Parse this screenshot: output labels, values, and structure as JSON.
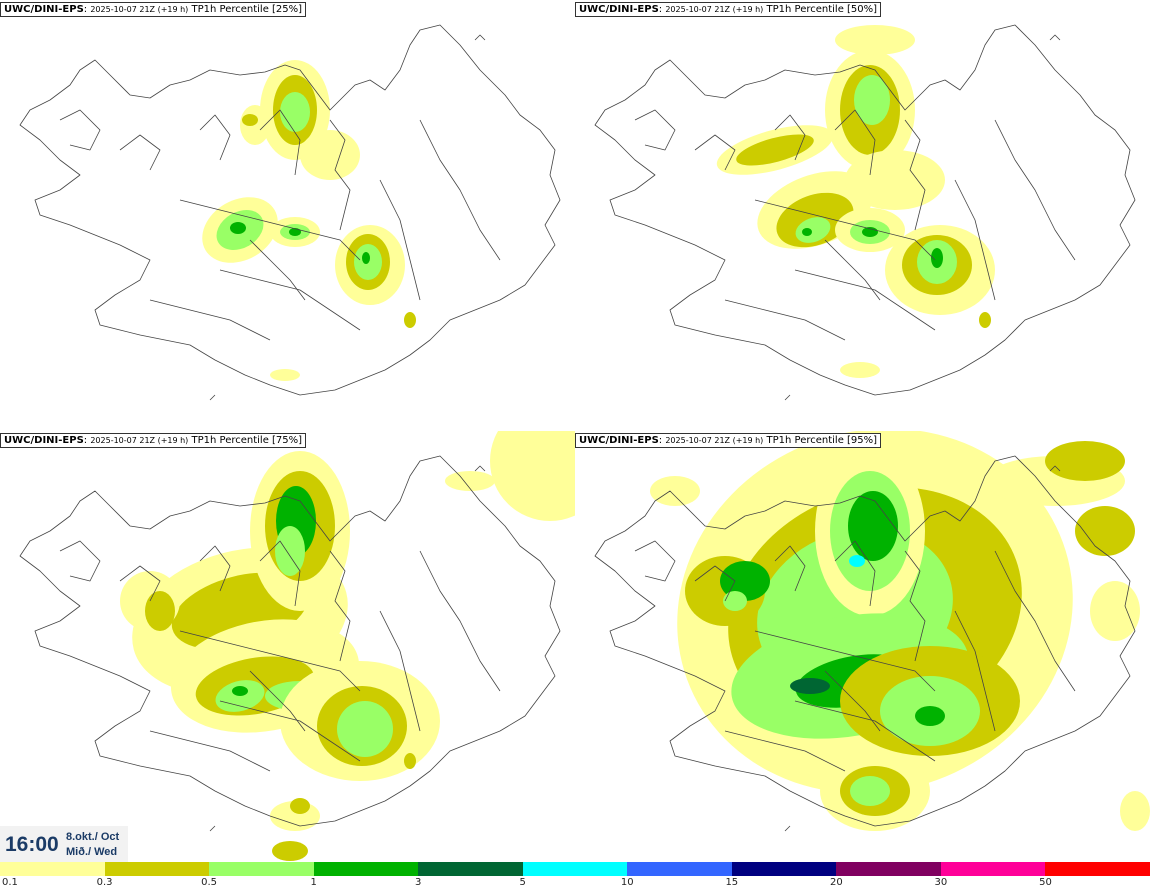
{
  "panels": [
    {
      "model": "UWC/DINI-EPS",
      "run": "2025-10-07 21Z (+19 h)",
      "product": "TP1h Percentile [25%]"
    },
    {
      "model": "UWC/DINI-EPS",
      "run": "2025-10-07 21Z (+19 h)",
      "product": "TP1h Percentile [50%]"
    },
    {
      "model": "UWC/DINI-EPS",
      "run": "2025-10-07 21Z (+19 h)",
      "product": "TP1h Percentile [75%]"
    },
    {
      "model": "UWC/DINI-EPS",
      "run": "2025-10-07 21Z (+19 h)",
      "product": "TP1h Percentile [95%]"
    }
  ],
  "valid_time": {
    "time": "16:00",
    "date_line1": "8.okt./ Oct",
    "date_line2": "Mið./ Wed"
  },
  "legend": {
    "ticks": [
      "0.1",
      "0.3",
      "0.5",
      "1",
      "3",
      "5",
      "10",
      "15",
      "20",
      "30",
      "50"
    ],
    "colors": [
      "#ffff99",
      "#cccc00",
      "#99ff66",
      "#00b200",
      "#006633",
      "#00ffff",
      "#3366ff",
      "#000080",
      "#800060",
      "#ff0099",
      "#ff0000"
    ]
  },
  "colors": {
    "coast": "#444444",
    "time_text": "#1b3b66"
  }
}
